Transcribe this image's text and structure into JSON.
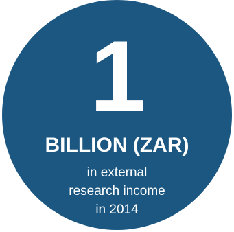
{
  "colors": {
    "circle": "#1b5781",
    "text": "#ffffff",
    "background": "#ffffff"
  },
  "stat": {
    "number": "1",
    "unit": "BILLION (ZAR)",
    "description_lines": [
      "in external",
      "research income",
      "in 2014"
    ]
  }
}
